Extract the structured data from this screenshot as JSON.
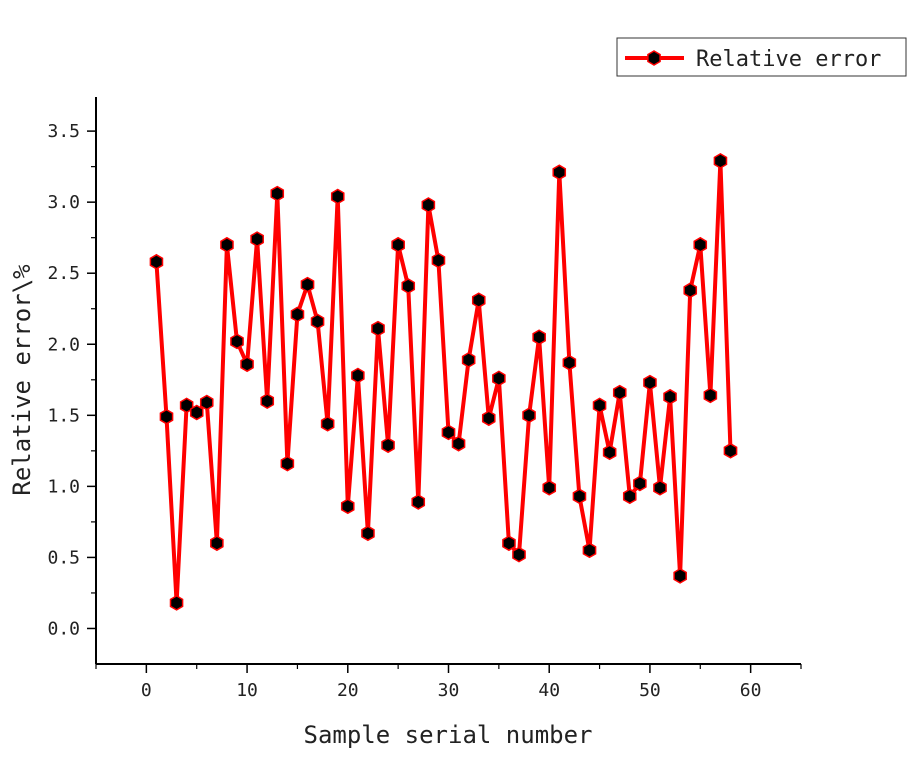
{
  "chart_data": {
    "type": "line",
    "title": "",
    "xlabel": "Sample serial number",
    "ylabel": "Relative error\\%",
    "xlim": [
      -5,
      65
    ],
    "ylim": [
      -0.25,
      3.74
    ],
    "xticks": [
      "0",
      "10",
      "20",
      "30",
      "40",
      "50",
      "60"
    ],
    "yticks": [
      "0.0",
      "0.5",
      "1.0",
      "1.5",
      "2.0",
      "2.5",
      "3.0",
      "3.5"
    ],
    "grid": false,
    "legend_position": "top-right",
    "series": [
      {
        "name": "Relative error",
        "color": "#ff0000",
        "marker": "hexagon",
        "marker_color": "#000000",
        "x": [
          1,
          2,
          3,
          4,
          5,
          6,
          7,
          8,
          9,
          10,
          11,
          12,
          13,
          14,
          15,
          16,
          17,
          18,
          19,
          20,
          21,
          22,
          23,
          24,
          25,
          26,
          27,
          28,
          29,
          30,
          31,
          32,
          33,
          34,
          35,
          36,
          37,
          38,
          39,
          40,
          41,
          42,
          43,
          44,
          45,
          46,
          47,
          48,
          49,
          50,
          51,
          52,
          53,
          54,
          55,
          56,
          57,
          58
        ],
        "y": [
          2.58,
          1.49,
          0.18,
          1.57,
          1.52,
          1.59,
          0.6,
          2.7,
          2.02,
          1.86,
          2.74,
          1.6,
          3.06,
          1.16,
          2.21,
          2.42,
          2.16,
          1.44,
          3.04,
          0.86,
          1.78,
          0.67,
          2.11,
          1.29,
          2.7,
          2.41,
          0.89,
          2.98,
          2.59,
          1.38,
          1.3,
          1.89,
          2.31,
          1.48,
          1.76,
          0.6,
          0.52,
          1.5,
          2.05,
          0.99,
          3.21,
          1.87,
          0.93,
          0.55,
          1.57,
          1.24,
          1.66,
          0.93,
          1.02,
          1.73,
          0.99,
          1.63,
          0.37,
          2.38,
          2.7,
          1.64,
          3.29,
          1.25
        ]
      }
    ]
  }
}
